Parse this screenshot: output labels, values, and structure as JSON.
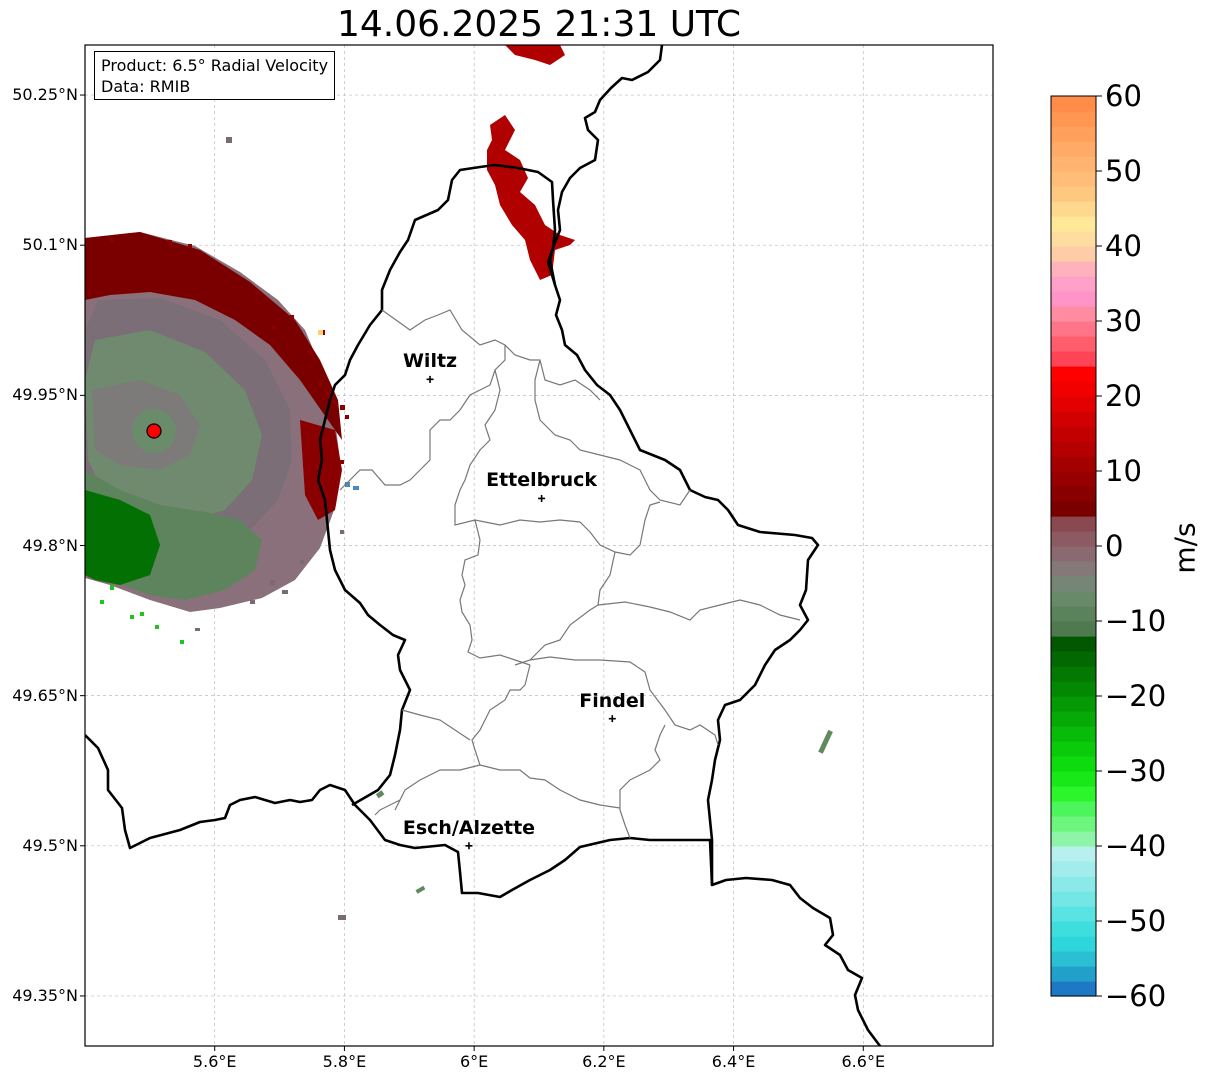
{
  "title": "14.06.2025 21:31 UTC",
  "info": {
    "product": "Product: 6.5° Radial Velocity",
    "data": "Data: RMIB"
  },
  "map": {
    "lon_range": [
      5.4,
      6.8
    ],
    "lat_range": [
      49.3,
      50.3
    ],
    "lat_ticks": [
      {
        "value": 50.25,
        "label": "50.25°N"
      },
      {
        "value": 50.1,
        "label": "50.1°N"
      },
      {
        "value": 49.95,
        "label": "49.95°N"
      },
      {
        "value": 49.8,
        "label": "49.8°N"
      },
      {
        "value": 49.65,
        "label": "49.65°N"
      },
      {
        "value": 49.5,
        "label": "49.5°N"
      },
      {
        "value": 49.35,
        "label": "49.35°N"
      }
    ],
    "lon_ticks": [
      {
        "value": 5.6,
        "label": "5.6°E"
      },
      {
        "value": 5.8,
        "label": "5.8°E"
      },
      {
        "value": 6.0,
        "label": "6°E"
      },
      {
        "value": 6.2,
        "label": "6.2°E"
      },
      {
        "value": 6.4,
        "label": "6.4°E"
      },
      {
        "value": 6.6,
        "label": "6.6°E"
      }
    ],
    "grid": true,
    "radar_site": {
      "lon": 5.505,
      "lat": 49.914
    },
    "cities": [
      {
        "name": "Wiltz",
        "lon": 5.932,
        "lat": 49.966
      },
      {
        "name": "Ettelbruck",
        "lon": 6.104,
        "lat": 49.847
      },
      {
        "name": "Findel",
        "lon": 6.213,
        "lat": 49.627
      },
      {
        "name": "Esch/Alzette",
        "lon": 5.992,
        "lat": 49.5
      }
    ]
  },
  "colorbar": {
    "label": "m/s",
    "min": -60,
    "max": 60,
    "ticks": [
      {
        "value": 60,
        "label": "60"
      },
      {
        "value": 50,
        "label": "50"
      },
      {
        "value": 40,
        "label": "40"
      },
      {
        "value": 30,
        "label": "30"
      },
      {
        "value": 20,
        "label": "20"
      },
      {
        "value": 10,
        "label": "10"
      },
      {
        "value": 0,
        "label": "0"
      },
      {
        "value": -10,
        "label": "−10"
      },
      {
        "value": -20,
        "label": "−20"
      },
      {
        "value": -30,
        "label": "−30"
      },
      {
        "value": -40,
        "label": "−40"
      },
      {
        "value": -50,
        "label": "−50"
      },
      {
        "value": -60,
        "label": "−60"
      }
    ],
    "colors": [
      "#1f78c4",
      "#22a0cc",
      "#2bbfd4",
      "#2ed6dc",
      "#3fdede",
      "#5ae3e3",
      "#74e6e6",
      "#8ce9e9",
      "#a3ecec",
      "#b8efef",
      "#8ef5a8",
      "#6ef57e",
      "#4cf55c",
      "#2cf52c",
      "#18e818",
      "#0edb0e",
      "#0acb0a",
      "#08bb08",
      "#06aa06",
      "#059905",
      "#048804",
      "#037803",
      "#026802",
      "#015801",
      "#4f7a4f",
      "#5c825c",
      "#688a68",
      "#768676",
      "#857878",
      "#8a6a70",
      "#8c5a62",
      "#8a4850",
      "#7a0000",
      "#880000",
      "#960000",
      "#a50000",
      "#b40000",
      "#c30000",
      "#d20000",
      "#e20000",
      "#f20000",
      "#ff0000",
      "#ff4455",
      "#ff5c6c",
      "#ff7486",
      "#ff8ca0",
      "#ff94c8",
      "#ffa0c8",
      "#ffb2bb",
      "#ffcca8",
      "#ffdda0",
      "#ffe898",
      "#ffd890",
      "#ffc880",
      "#ffbe78",
      "#ffb470",
      "#ffaa66",
      "#ffa05c",
      "#ff9652",
      "#ff8c48"
    ]
  }
}
